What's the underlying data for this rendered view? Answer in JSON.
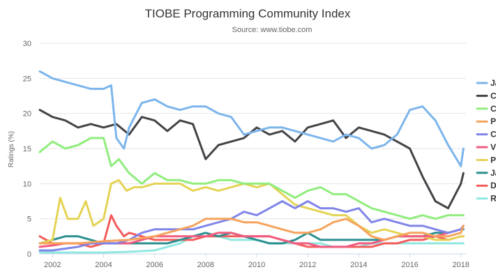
{
  "chart_data": {
    "type": "line",
    "title": "TIOBE Programming Community Index",
    "subtitle": "Source: www.tiobe.com",
    "ylabel": "Ratings (%)",
    "xlabel": "",
    "xlim": [
      2001.5,
      2018.2
    ],
    "ylim": [
      0,
      30
    ],
    "x_ticks": [
      "2002",
      "2004",
      "2006",
      "2008",
      "2010",
      "2012",
      "2014",
      "2016",
      "2018"
    ],
    "y_ticks": [
      "0",
      "5",
      "10",
      "15",
      "20",
      "25",
      "30"
    ],
    "grid": true,
    "legend_position": "right",
    "series": [
      {
        "name": "Ja",
        "color": "#7cb5ec",
        "x": [
          2001.5,
          2002,
          2002.5,
          2003,
          2003.5,
          2004,
          2004.3,
          2004.5,
          2004.8,
          2005,
          2005.5,
          2006,
          2006.5,
          2007,
          2007.5,
          2008,
          2008.5,
          2009,
          2009.5,
          2010,
          2010.5,
          2011,
          2011.5,
          2012,
          2012.5,
          2013,
          2013.5,
          2014,
          2014.5,
          2015,
          2015.5,
          2016,
          2016.5,
          2017,
          2017.5,
          2018,
          2018.1
        ],
        "y": [
          26,
          25,
          24.5,
          24,
          23.5,
          23.5,
          24,
          16.5,
          15,
          18,
          21.5,
          22,
          21,
          20.5,
          21,
          21,
          20,
          19.5,
          17,
          17.5,
          18,
          18,
          17.5,
          17,
          16.5,
          16,
          17,
          16.5,
          15,
          15.5,
          17,
          20.5,
          21,
          19,
          15.5,
          12.5,
          15
        ]
      },
      {
        "name": "C",
        "color": "#434348",
        "x": [
          2001.5,
          2002,
          2002.5,
          2003,
          2003.5,
          2004,
          2004.5,
          2005,
          2005.5,
          2006,
          2006.5,
          2007,
          2007.5,
          2008,
          2008.5,
          2009,
          2009.5,
          2010,
          2010.5,
          2011,
          2011.5,
          2012,
          2012.5,
          2013,
          2013.5,
          2014,
          2014.5,
          2015,
          2015.5,
          2016,
          2016.5,
          2017,
          2017.5,
          2018,
          2018.1
        ],
        "y": [
          20.5,
          19.5,
          19,
          18,
          18.5,
          18,
          18.5,
          17,
          19.5,
          19,
          17.5,
          19,
          18.5,
          13.5,
          15.5,
          16,
          16.5,
          18,
          17,
          17.5,
          16,
          18,
          18.5,
          19,
          16.5,
          18,
          17.5,
          17,
          16,
          15,
          11,
          7.5,
          6.5,
          10,
          11.5
        ]
      },
      {
        "name": "C",
        "color": "#90ed7d",
        "x": [
          2001.5,
          2002,
          2002.5,
          2003,
          2003.5,
          2004,
          2004.3,
          2004.6,
          2005,
          2005.5,
          2006,
          2006.5,
          2007,
          2007.5,
          2008,
          2008.5,
          2009,
          2009.5,
          2010,
          2010.5,
          2011,
          2011.5,
          2012,
          2012.5,
          2013,
          2013.5,
          2014,
          2014.5,
          2015,
          2015.5,
          2016,
          2016.5,
          2017,
          2017.5,
          2018,
          2018.1
        ],
        "y": [
          14.5,
          16,
          15,
          15.5,
          16.5,
          16.5,
          12.5,
          13.5,
          11.5,
          10,
          11.5,
          10.5,
          10.5,
          10,
          10,
          10.5,
          10.5,
          10,
          10,
          10,
          9,
          8,
          9,
          9.5,
          8.5,
          8.5,
          7.5,
          6.5,
          6,
          5.5,
          5,
          5.5,
          5,
          5.5,
          5.5,
          5.5
        ]
      },
      {
        "name": "P",
        "color": "#f7a35c",
        "x": [
          2001.5,
          2002,
          2003,
          2004,
          2005,
          2006,
          2007,
          2007.5,
          2008,
          2008.5,
          2009,
          2009.5,
          2010,
          2010.5,
          2011,
          2011.5,
          2012,
          2012.5,
          2013,
          2013.5,
          2014,
          2014.5,
          2015,
          2015.5,
          2016,
          2016.5,
          2017,
          2017.5,
          2018,
          2018.1
        ],
        "y": [
          1.5,
          1.5,
          1.5,
          1.8,
          2,
          2.5,
          3.5,
          4,
          5,
          5,
          5,
          4.5,
          4.5,
          4,
          3.5,
          3,
          3,
          3.5,
          4.5,
          5,
          4,
          2.5,
          2,
          2.5,
          3,
          3,
          2.5,
          2.5,
          3,
          4
        ]
      },
      {
        "name": "C",
        "color": "#8085e9",
        "x": [
          2001.5,
          2002,
          2003,
          2003.5,
          2004,
          2004.5,
          2005,
          2005.5,
          2006,
          2006.5,
          2007,
          2007.5,
          2008,
          2008.5,
          2009,
          2009.5,
          2010,
          2010.5,
          2011,
          2011.5,
          2012,
          2012.5,
          2013,
          2013.5,
          2014,
          2014.5,
          2015,
          2015.5,
          2016,
          2016.5,
          2017,
          2017.5,
          2018,
          2018.1
        ],
        "y": [
          0.5,
          0.5,
          1,
          1.5,
          1.5,
          1.5,
          2,
          3,
          3.5,
          3.5,
          3.5,
          3.5,
          4,
          4.5,
          5,
          6,
          5.5,
          6.5,
          7.5,
          6.5,
          7.5,
          6.5,
          6.5,
          6,
          6.5,
          4.5,
          5,
          4.5,
          4,
          4,
          3.5,
          3,
          3.5,
          4
        ]
      },
      {
        "name": "V",
        "color": "#f15c80",
        "x": [
          2001.5,
          2002,
          2002.5,
          2003,
          2003.5,
          2004,
          2004.5,
          2005,
          2005.5,
          2006,
          2006.5,
          2007,
          2007.5,
          2008,
          2008.5,
          2009,
          2009.5,
          2010,
          2010.5,
          2011,
          2011.5,
          2012,
          2012.5,
          2013,
          2013.5,
          2014,
          2014.5,
          2015,
          2015.5,
          2016,
          2016.5,
          2017,
          2017.5,
          2018,
          2018.1
        ],
        "y": [
          1,
          1.2,
          1.5,
          1.5,
          1.5,
          1.5,
          1.5,
          1.5,
          2,
          2.5,
          2.5,
          2.5,
          2.5,
          2.5,
          3,
          3,
          2.5,
          2.5,
          2.5,
          2,
          1.5,
          1.5,
          1,
          1,
          1,
          1.5,
          1.5,
          2,
          2.5,
          2.5,
          2.5,
          2.5,
          3,
          3.5,
          4
        ]
      },
      {
        "name": "P",
        "color": "#e4d354",
        "x": [
          2001.5,
          2002,
          2002.3,
          2002.6,
          2003,
          2003.3,
          2003.6,
          2004,
          2004.3,
          2004.6,
          2004.9,
          2005.2,
          2005.5,
          2006,
          2006.5,
          2007,
          2007.5,
          2008,
          2008.5,
          2009,
          2009.5,
          2010,
          2010.5,
          2011,
          2011.5,
          2012,
          2012.5,
          2013,
          2013.5,
          2014,
          2014.5,
          2015,
          2015.5,
          2016,
          2016.5,
          2017,
          2017.5,
          2018,
          2018.1
        ],
        "y": [
          1.5,
          2,
          8,
          5,
          5,
          7.5,
          4,
          5,
          10,
          10.5,
          9,
          9.5,
          9.5,
          10,
          10,
          10,
          9,
          9.5,
          9,
          9.5,
          10,
          9.5,
          10,
          8.5,
          7,
          6.5,
          6,
          5.5,
          5.5,
          4,
          3,
          3.5,
          3,
          2.5,
          2.5,
          2,
          2,
          2.5,
          2.5
        ]
      },
      {
        "name": "Ja",
        "color": "#2b908f",
        "x": [
          2001.5,
          2002,
          2002.5,
          2003,
          2003.5,
          2004,
          2004.5,
          2005,
          2005.5,
          2006,
          2006.5,
          2007,
          2007.5,
          2008,
          2008.5,
          2009,
          2009.5,
          2010,
          2010.5,
          2011,
          2011.5,
          2012,
          2012.5,
          2013,
          2013.5,
          2014,
          2014.5,
          2015,
          2015.5,
          2016,
          2016.5,
          2017,
          2017.5,
          2018,
          2018.1
        ],
        "y": [
          1.5,
          2,
          2.5,
          2.5,
          2,
          1.5,
          1.5,
          1.5,
          1.5,
          1.5,
          1.5,
          2,
          2.5,
          3,
          2.5,
          3,
          2.5,
          2,
          1.5,
          1.5,
          2,
          3,
          2,
          2,
          2,
          2,
          2,
          2,
          2.5,
          2.5,
          2.5,
          3,
          3,
          3.5,
          3.5
        ]
      },
      {
        "name": "D",
        "color": "#f45b5b",
        "x": [
          2001.5,
          2002,
          2002.5,
          2003,
          2003.5,
          2004,
          2004.3,
          2004.5,
          2004.8,
          2005,
          2005.5,
          2006,
          2006.5,
          2007,
          2007.5,
          2008,
          2008.5,
          2009,
          2009.5,
          2010,
          2010.5,
          2011,
          2011.5,
          2012,
          2012.5,
          2013,
          2013.5,
          2014,
          2014.5,
          2015,
          2015.5,
          2016,
          2016.5,
          2017,
          2017.5,
          2018,
          2018.1
        ],
        "y": [
          2.5,
          1.5,
          1.5,
          1.5,
          1,
          1.5,
          5.5,
          4,
          2.5,
          3,
          2.5,
          2,
          2,
          2,
          2,
          2.5,
          2.5,
          2.5,
          2.5,
          2.5,
          2.5,
          2,
          1.5,
          1,
          1,
          1,
          1,
          1,
          1,
          1.5,
          1.5,
          2,
          2,
          2.5,
          2,
          2.5,
          2.5
        ]
      },
      {
        "name": "R",
        "color": "#91e8e1",
        "x": [
          2001.5,
          2002,
          2003,
          2004,
          2005,
          2006,
          2007,
          2007.5,
          2008,
          2008.5,
          2009,
          2009.5,
          2010,
          2010.5,
          2011,
          2011.5,
          2012,
          2012.5,
          2013,
          2013.5,
          2014,
          2014.5,
          2015,
          2015.5,
          2016,
          2016.5,
          2017,
          2017.5,
          2018,
          2018.1
        ],
        "y": [
          0.2,
          0.2,
          0.2,
          0.2,
          0.3,
          0.5,
          1.5,
          2.5,
          2.5,
          2.5,
          2,
          2,
          2,
          1.5,
          1.5,
          1.5,
          1.5,
          1.5,
          1,
          1,
          1,
          1.5,
          1.5,
          1.5,
          1.5,
          1.5,
          1.5,
          1.5,
          1.5,
          1.5
        ]
      }
    ]
  }
}
